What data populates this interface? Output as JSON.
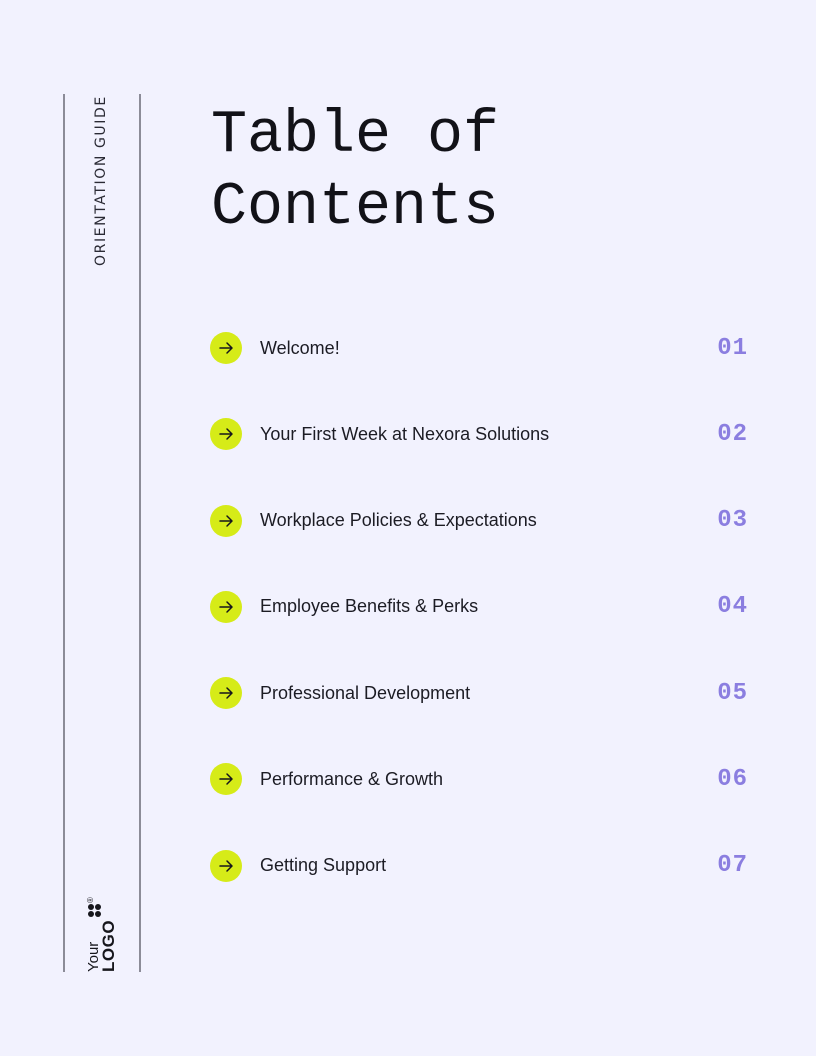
{
  "sidebar": {
    "label": "ORIENTATION GUIDE",
    "logo": {
      "line1": "Your",
      "line2": "LOGO",
      "mark": "®",
      "icon": "four-dot-logo-icon"
    }
  },
  "page": {
    "title_line1": "Table of",
    "title_line2": "Contents"
  },
  "toc": {
    "arrow_icon": "arrow-right-icon",
    "accent_color": "#d6eb18",
    "number_color": "#8b7ee0",
    "items": [
      {
        "label": "Welcome!",
        "number": "01"
      },
      {
        "label": "Your First Week at Nexora Solutions",
        "number": "02"
      },
      {
        "label": "Workplace Policies & Expectations",
        "number": "03"
      },
      {
        "label": "Employee Benefits & Perks",
        "number": "04"
      },
      {
        "label": "Professional Development",
        "number": "05"
      },
      {
        "label": "Performance & Growth",
        "number": "06"
      },
      {
        "label": "Getting Support",
        "number": "07"
      }
    ]
  }
}
